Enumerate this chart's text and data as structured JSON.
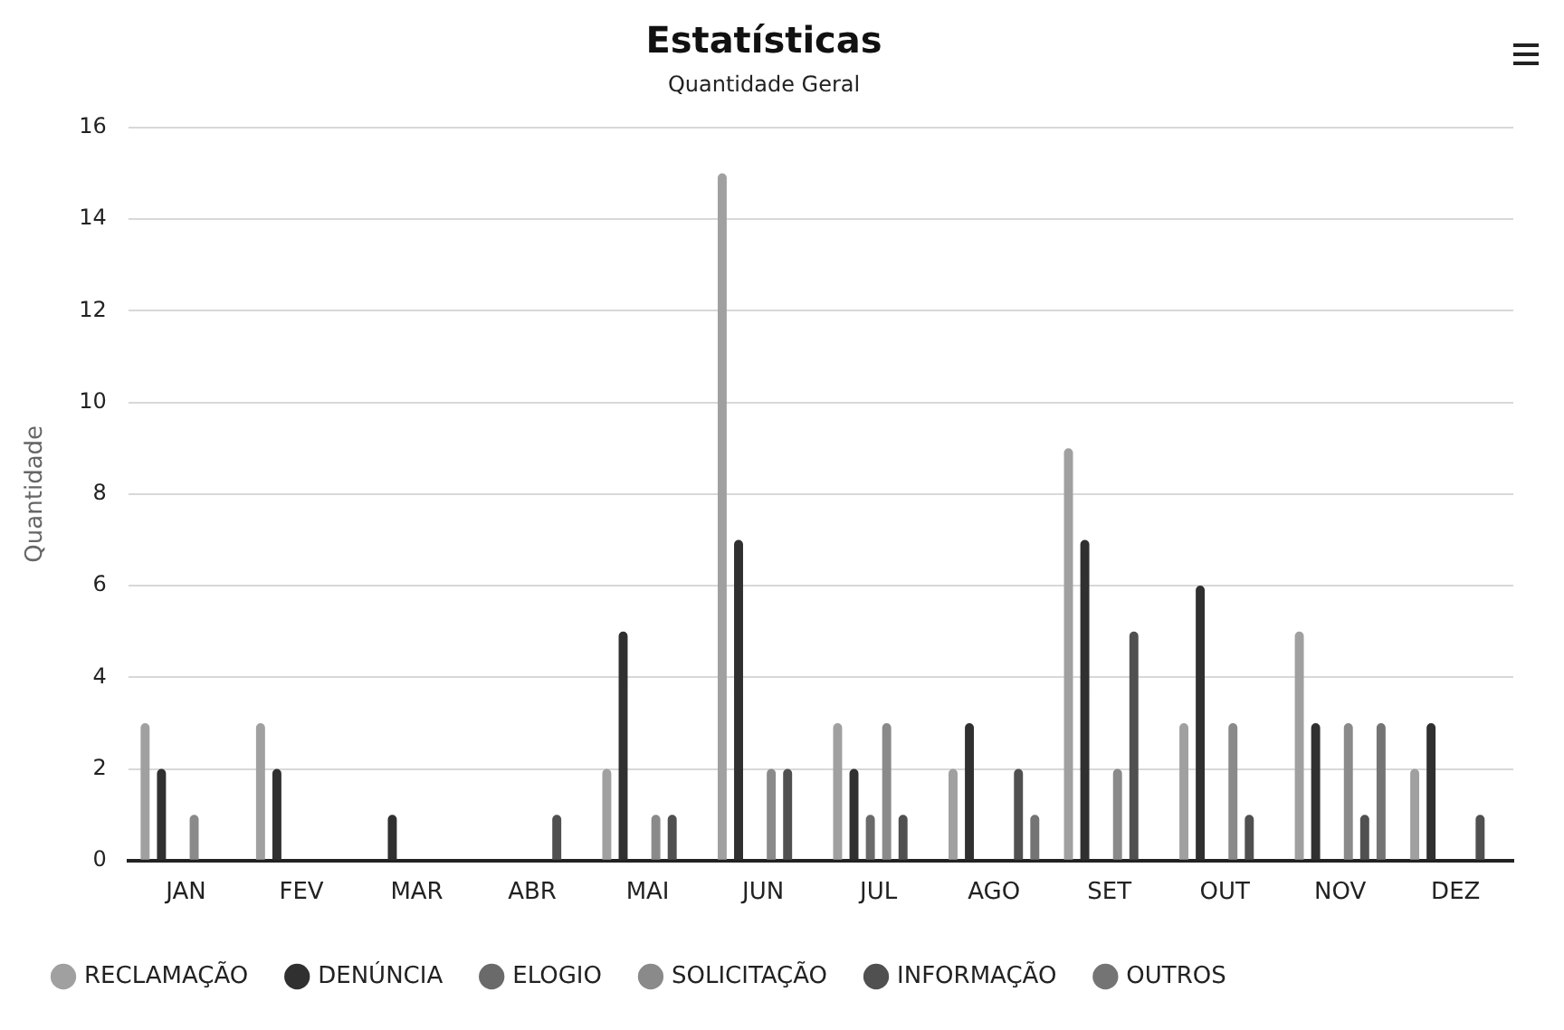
{
  "chart_data": {
    "type": "bar",
    "title": "Estatísticas",
    "subtitle": "Quantidade Geral",
    "ylabel": "Quantidade",
    "categories": [
      "JAN",
      "FEV",
      "MAR",
      "ABR",
      "MAI",
      "JUN",
      "JUL",
      "AGO",
      "SET",
      "OUT",
      "NOV",
      "DEZ"
    ],
    "series": [
      {
        "name": "RECLAMAÇÃO",
        "color": "#a0a0a0",
        "values": [
          3,
          3,
          0,
          0,
          2,
          15,
          3,
          2,
          9,
          3,
          5,
          2
        ]
      },
      {
        "name": "DENÚNCIA",
        "color": "#303030",
        "values": [
          2,
          2,
          1,
          0,
          5,
          7,
          2,
          3,
          7,
          6,
          3,
          3
        ]
      },
      {
        "name": "ELOGIO",
        "color": "#6a6a6a",
        "values": [
          0,
          0,
          0,
          0,
          0,
          0,
          1,
          0,
          0,
          0,
          0,
          0
        ]
      },
      {
        "name": "SOLICITAÇÃO",
        "color": "#8a8a8a",
        "values": [
          1,
          0,
          0,
          0,
          1,
          2,
          3,
          0,
          2,
          3,
          3,
          0
        ]
      },
      {
        "name": "INFORMAÇÃO",
        "color": "#505050",
        "values": [
          0,
          0,
          0,
          1,
          1,
          2,
          1,
          2,
          5,
          1,
          1,
          1
        ]
      },
      {
        "name": "OUTROS",
        "color": "#747474",
        "values": [
          0,
          0,
          0,
          0,
          0,
          0,
          0,
          1,
          0,
          0,
          3,
          0
        ]
      }
    ],
    "ylim": [
      0,
      16
    ],
    "yticks": [
      0,
      2,
      4,
      6,
      8,
      10,
      12,
      14,
      16
    ],
    "grid": "y",
    "legend": "bottom"
  }
}
